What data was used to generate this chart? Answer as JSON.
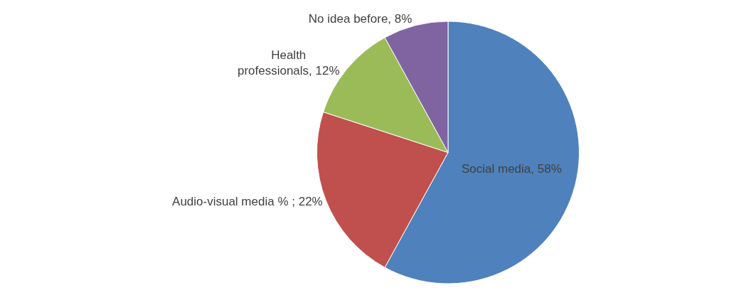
{
  "chart_data": {
    "type": "pie",
    "categories": [
      null,
      null,
      null,
      null
    ],
    "values": [
      58,
      22,
      12,
      8
    ],
    "colors": [
      "#4f81bd",
      "#c0504d",
      "#9bbb59",
      "#8064a2"
    ],
    "value_labels": [
      "Social media, 58%",
      "Audio-visual media % ; 22%",
      "Health\nprofessionals, 12%",
      "No idea before, 8%"
    ]
  }
}
